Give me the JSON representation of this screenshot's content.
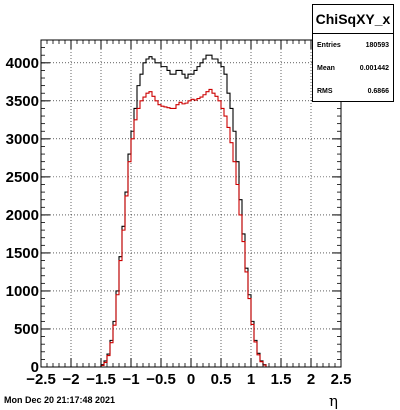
{
  "chart_data": {
    "type": "histogram",
    "title": "ChiSqXY_x",
    "xlabel": "η",
    "ylabel": "",
    "xlim": [
      -2.5,
      2.5
    ],
    "ylim": [
      0,
      4300
    ],
    "x_ticks": [
      "−2.5",
      "−2",
      "−1.5",
      "−1",
      "−0.5",
      "0",
      "0.5",
      "1",
      "1.5",
      "2",
      "2.5"
    ],
    "y_ticks": [
      "0",
      "500",
      "1000",
      "1500",
      "2000",
      "2500",
      "3000",
      "3500",
      "4000"
    ],
    "grid": true,
    "bin_width": 0.05,
    "x_start": -2.5,
    "series": [
      {
        "color": "#000000",
        "values": [
          0,
          0,
          0,
          0,
          0,
          0,
          0,
          0,
          0,
          0,
          0,
          0,
          0,
          0,
          0,
          0,
          0,
          0,
          0,
          0,
          30,
          80,
          170,
          350,
          600,
          1000,
          1450,
          1850,
          2300,
          2800,
          3100,
          3400,
          3700,
          3850,
          4000,
          4050,
          4080,
          4050,
          4000,
          4000,
          3950,
          3950,
          3900,
          3850,
          3850,
          3900,
          3900,
          3850,
          3800,
          3850,
          3850,
          3900,
          3950,
          4000,
          4050,
          4100,
          4100,
          4050,
          4050,
          4000,
          3950,
          3850,
          3600,
          3400,
          3100,
          2700,
          2200,
          1750,
          1300,
          950,
          600,
          350,
          180,
          80,
          30,
          0,
          0,
          0,
          0,
          0,
          0,
          0,
          0,
          0,
          0,
          0,
          0,
          0,
          0,
          0,
          0,
          0,
          0,
          0,
          0,
          0,
          0,
          0,
          0,
          0
        ]
      },
      {
        "color": "#cc0000",
        "values": [
          0,
          0,
          0,
          0,
          0,
          0,
          0,
          0,
          0,
          0,
          0,
          0,
          0,
          0,
          0,
          0,
          0,
          0,
          0,
          0,
          20,
          60,
          150,
          320,
          550,
          950,
          1400,
          1800,
          2250,
          2700,
          3000,
          3250,
          3400,
          3500,
          3550,
          3600,
          3620,
          3560,
          3500,
          3450,
          3430,
          3420,
          3410,
          3400,
          3400,
          3450,
          3480,
          3460,
          3470,
          3500,
          3520,
          3510,
          3530,
          3550,
          3580,
          3620,
          3650,
          3600,
          3560,
          3500,
          3400,
          3300,
          3150,
          2950,
          2700,
          2400,
          2000,
          1650,
          1250,
          900,
          560,
          330,
          160,
          70,
          25,
          0,
          0,
          0,
          0,
          0,
          0,
          0,
          0,
          0,
          0,
          0,
          0,
          0,
          0,
          0,
          0,
          0,
          0,
          0,
          0,
          0,
          0,
          0,
          0,
          0
        ]
      }
    ]
  },
  "stats": {
    "title": "ChiSqXY_x",
    "rows": [
      {
        "label": "Entries",
        "value": "180593"
      },
      {
        "label": "Mean",
        "value": "0.001442"
      },
      {
        "label": "RMS",
        "value": "0.6866"
      }
    ]
  },
  "timestamp": "Mon Dec 20 21:17:48 2021"
}
